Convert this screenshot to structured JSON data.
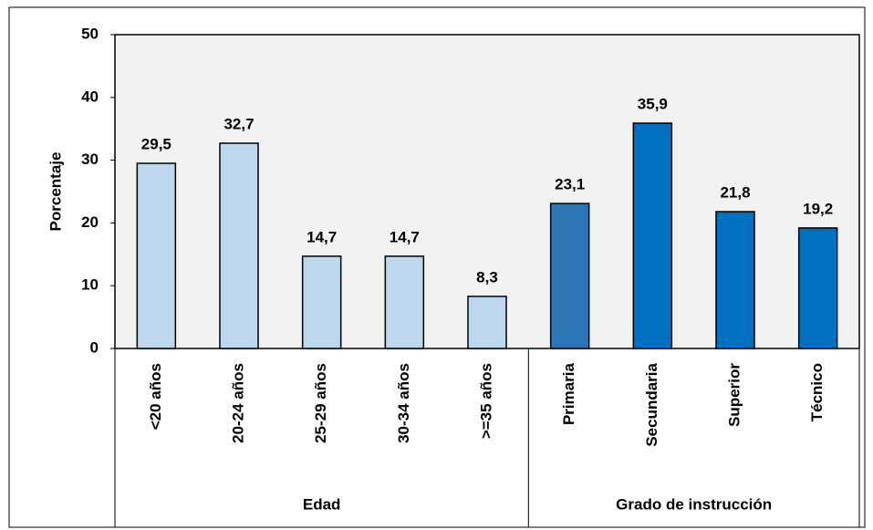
{
  "chart_data": {
    "type": "bar",
    "y_label": "Porcentaje",
    "ylim": [
      0,
      50
    ],
    "yticks": [
      0,
      10,
      20,
      30,
      40,
      50
    ],
    "grid": false,
    "groups": [
      {
        "name": "Edad",
        "categories": [
          "<20 años",
          "20-24 años",
          "25-29 años",
          "30-34 años",
          ">=35 años"
        ],
        "values": [
          29.5,
          32.7,
          14.7,
          14.7,
          8.3
        ],
        "value_labels": [
          "29,5",
          "32,7",
          "14,7",
          "14,7",
          "8,3"
        ],
        "colors": [
          "#bdd7ee",
          "#bdd7ee",
          "#bdd7ee",
          "#bdd7ee",
          "#bdd7ee"
        ]
      },
      {
        "name": "Grado de instrucción",
        "categories": [
          "Primaria",
          "Secundaria",
          "Superior",
          "Técnico"
        ],
        "values": [
          23.1,
          35.9,
          21.8,
          19.2
        ],
        "value_labels": [
          "23,1",
          "35,9",
          "21,8",
          "19,2"
        ],
        "colors": [
          "#2e75b6",
          "#0070c0",
          "#0070c0",
          "#0070c0"
        ]
      }
    ]
  }
}
